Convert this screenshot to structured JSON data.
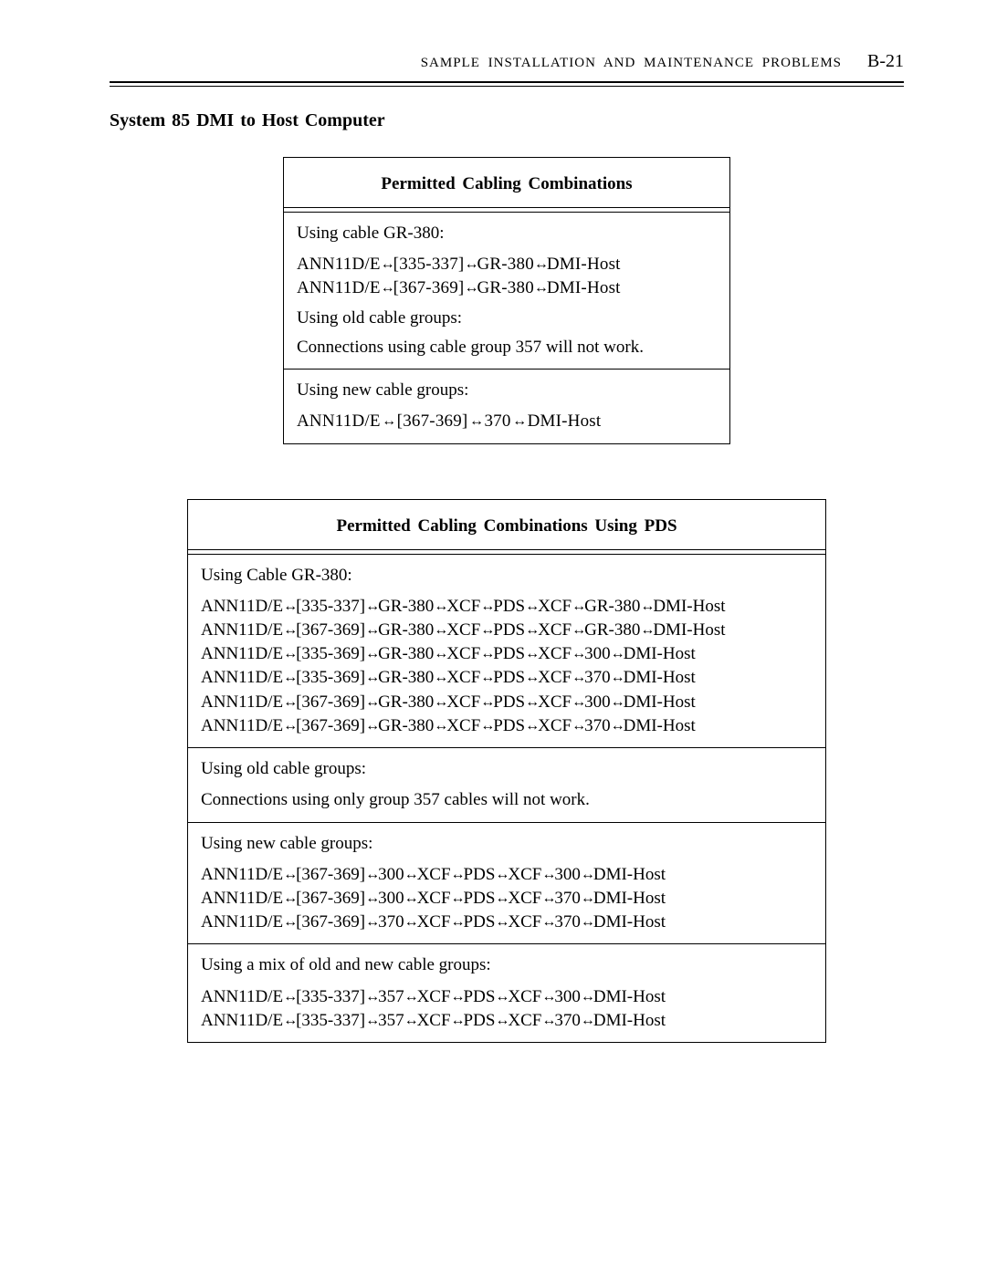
{
  "header": {
    "running": "SAMPLE INSTALLATION AND MAINTENANCE PROBLEMS",
    "page": "B-21"
  },
  "section_title": "System 85 DMI to Host Computer",
  "table1": {
    "caption": "Permitted Cabling Combinations",
    "r1_intro": "Using cable GR-380:",
    "r1_l1": {
      "p": [
        "ANN11D/E",
        "[335-337]",
        "GR-380",
        "DMI-Host"
      ]
    },
    "r1_l2": {
      "p": [
        "ANN11D/E",
        "[367-369]",
        "GR-380",
        "DMI-Host"
      ]
    },
    "r2_intro": "Using old cable groups:",
    "r2_body": "Connections using cable group 357 will not work.",
    "r3_intro": "Using new cable groups:",
    "r3_l1": {
      "p": [
        "ANN11D/E",
        "[367-369]",
        "370",
        "DMI-Host"
      ]
    }
  },
  "table2": {
    "caption": "Permitted Cabling Combinations Using PDS",
    "r1_intro": "Using Cable GR-380:",
    "r1_lines": [
      {
        "p": [
          "ANN11D/E",
          "[335-337]",
          "GR-380",
          "XCF",
          "PDS",
          "XCF",
          "GR-380",
          "DMI-Host"
        ]
      },
      {
        "p": [
          "ANN11D/E",
          "[367-369]",
          "GR-380",
          "XCF",
          "PDS",
          "XCF",
          "GR-380",
          "DMI-Host"
        ]
      },
      {
        "p": [
          "ANN11D/E",
          "[335-369]",
          "GR-380",
          "XCF",
          "PDS",
          "XCF",
          "300",
          "DMI-Host"
        ]
      },
      {
        "p": [
          "ANN11D/E",
          "[335-369]",
          "GR-380",
          "XCF",
          "PDS",
          "XCF",
          "370",
          "DMI-Host"
        ]
      },
      {
        "p": [
          "ANN11D/E",
          "[367-369]",
          "GR-380",
          "XCF",
          "PDS",
          "XCF",
          "300",
          "DMI-Host"
        ]
      },
      {
        "p": [
          "ANN11D/E",
          "[367-369]",
          "GR-380",
          "XCF",
          "PDS",
          "XCF",
          "370",
          "DMI-Host"
        ]
      }
    ],
    "r2_intro": "Using old cable groups:",
    "r2_body": "Connections using only group 357 cables will not work.",
    "r3_intro": "Using new cable groups:",
    "r3_lines": [
      {
        "p": [
          "ANN11D/E",
          "[367-369]",
          "300",
          "XCF",
          "PDS",
          "XCF",
          "300",
          "DMI-Host"
        ]
      },
      {
        "p": [
          "ANN11D/E",
          "[367-369]",
          "300",
          "XCF",
          "PDS",
          "XCF",
          "370",
          "DMI-Host"
        ]
      },
      {
        "p": [
          "ANN11D/E",
          "[367-369]",
          "370",
          "XCF",
          "PDS",
          "XCF",
          "370",
          "DMI-Host"
        ]
      }
    ],
    "r4_intro": "Using a mix of old and new cable groups:",
    "r4_lines": [
      {
        "p": [
          "ANN11D/E",
          "[335-337]",
          "357",
          "XCF",
          "PDS",
          "XCF",
          "300",
          "DMI-Host"
        ]
      },
      {
        "p": [
          "ANN11D/E",
          "[335-337]",
          "357",
          "XCF",
          "PDS",
          "XCF",
          "370",
          "DMI-Host"
        ]
      }
    ]
  }
}
